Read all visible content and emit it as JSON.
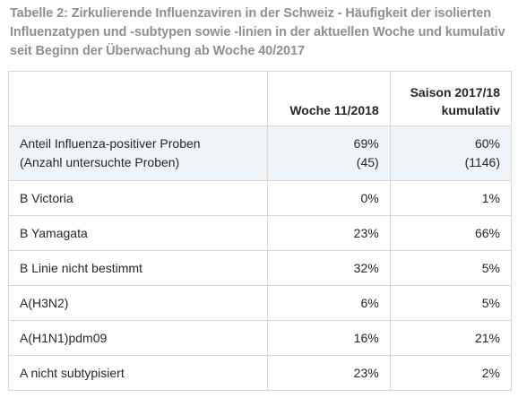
{
  "caption": {
    "line1": "Tabelle 2: Zirkulierende Influenzaviren in der Schweiz - Häufigkeit der isolierten",
    "line2": "Influenzatypen und -subtypen sowie -linien in der aktuellen Woche und kumulativ",
    "line3": "seit Beginn der Überwachung ab Woche 40/2017"
  },
  "table": {
    "headers": {
      "label": "",
      "week": "Woche 11/2018",
      "season_line1": "Saison 2017/18",
      "season_line2": "kumulativ"
    },
    "summary_row": {
      "label_line1": "Anteil Influenza-positiver Proben",
      "label_line2": "(Anzahl untersuchte Proben)",
      "week_pct": "69%",
      "week_n": "(45)",
      "season_pct": "60%",
      "season_n": "(1146)"
    },
    "rows": [
      {
        "label": "B Victoria",
        "week": "0%",
        "season": "1%"
      },
      {
        "label": "B Yamagata",
        "week": "23%",
        "season": "66%"
      },
      {
        "label": "B Linie nicht bestimmt",
        "week": "32%",
        "season": "5%"
      },
      {
        "label": "A(H3N2)",
        "week": "6%",
        "season": "5%"
      },
      {
        "label": "A(H1N1)pdm09",
        "week": "16%",
        "season": "21%"
      },
      {
        "label": "A nicht subtypisiert",
        "week": "23%",
        "season": "2%"
      }
    ]
  },
  "colors": {
    "caption_text": "#8f8f8f",
    "highlight_row": "#eef4f8",
    "border": "#d6d6d6"
  }
}
